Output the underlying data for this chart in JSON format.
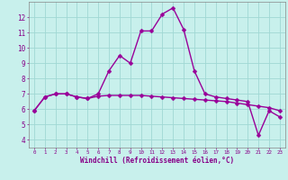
{
  "xlabel": "Windchill (Refroidissement éolien,°C)",
  "background_color": "#c8f0ec",
  "grid_color": "#a0d8d4",
  "line_color": "#990099",
  "marker": "D",
  "markersize": 2.5,
  "linewidth": 1.0,
  "xlim": [
    -0.5,
    23.5
  ],
  "ylim": [
    3.5,
    13.0
  ],
  "yticks": [
    4,
    5,
    6,
    7,
    8,
    9,
    10,
    11,
    12
  ],
  "xticks": [
    0,
    1,
    2,
    3,
    4,
    5,
    6,
    7,
    8,
    9,
    10,
    11,
    12,
    13,
    14,
    15,
    16,
    17,
    18,
    19,
    20,
    21,
    22,
    23
  ],
  "line1_x": [
    0,
    1,
    2,
    3,
    4,
    5,
    6,
    7,
    8,
    9,
    10,
    11,
    12,
    13,
    14,
    15,
    16,
    17,
    18,
    19,
    20,
    21,
    22,
    23
  ],
  "line1_y": [
    5.9,
    6.8,
    7.0,
    7.0,
    6.8,
    6.7,
    7.0,
    8.5,
    9.5,
    9.0,
    11.1,
    11.1,
    12.2,
    12.6,
    11.2,
    8.5,
    7.0,
    6.8,
    6.7,
    6.6,
    6.5,
    4.3,
    5.9,
    5.5
  ],
  "line2_x": [
    0,
    1,
    2,
    3,
    4,
    5,
    6,
    7,
    8,
    9,
    10,
    11,
    12,
    13,
    14,
    15,
    16,
    17,
    18,
    19,
    20,
    21,
    22,
    23
  ],
  "line2_y": [
    5.9,
    6.8,
    7.0,
    7.0,
    6.8,
    6.7,
    6.85,
    6.9,
    6.9,
    6.9,
    6.9,
    6.85,
    6.8,
    6.75,
    6.7,
    6.65,
    6.6,
    6.55,
    6.5,
    6.4,
    6.3,
    6.2,
    6.1,
    5.9
  ]
}
